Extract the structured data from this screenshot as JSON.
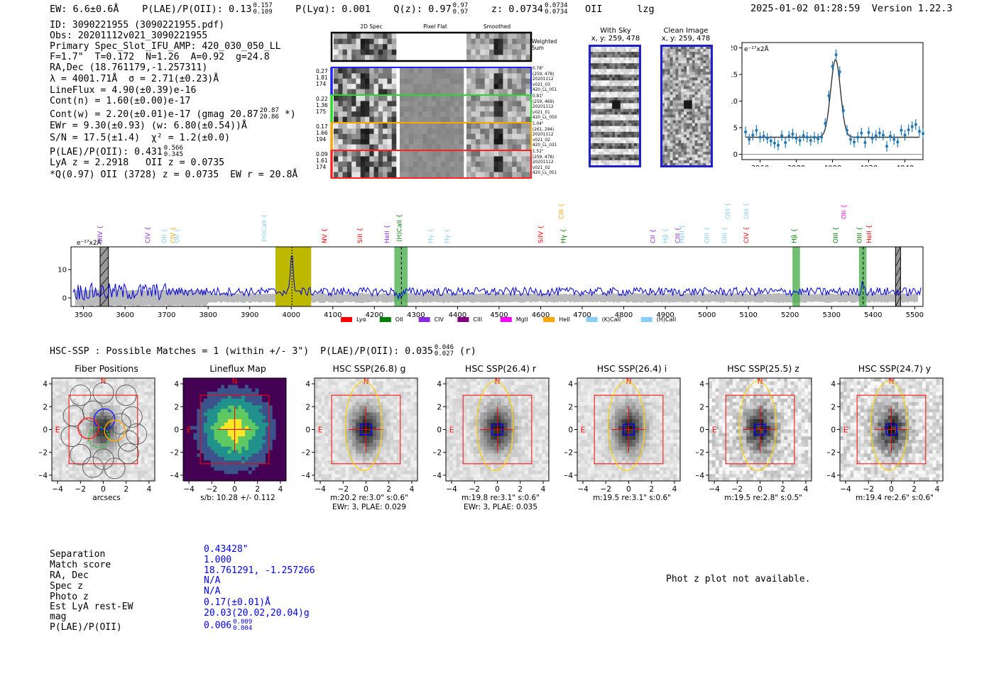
{
  "header": {
    "ew": "EW: 6.6±0.6Å",
    "plae_label": "P(LAE)/P(OII): 0.13",
    "plae_hi": "0.157",
    "plae_lo": "0.109",
    "plya": "P(Lyα): 0.001",
    "qz_label": "Q(z): 0.97",
    "qz_hi": "0.97",
    "qz_lo": "0.97",
    "z_label": "z: 0.0734",
    "z_hi": "0.0734",
    "z_lo": "0.0734",
    "z_line": "OII",
    "flag": "lzg",
    "timestamp": "2025-01-02 01:28:59",
    "version": "Version 1.22.3"
  },
  "info": {
    "id": "ID: 3090221955 (3090221955.pdf)",
    "obs": "Obs: 20201112v021_3090221955",
    "primary": "Primary Spec_Slot_IFU_AMP: 420_030_050_LL",
    "params": "F=1.7\"  T=0.172  N=1.26  A=0.92  g=24.8",
    "radec": "RA,Dec (18.761179,-1.257311)",
    "lambda": "λ = 4001.71Å  σ = 2.71(±0.23)Å",
    "lineflux": "LineFlux = 4.90(±0.39)e-16",
    "contn": "Cont(n) = 1.60(±0.00)e-17",
    "contw": "Cont(w) = 2.20(±0.01)e-17 (gmag 20.87",
    "contw_hi": "20.87",
    "contw_lo": "20.86",
    "contw_end": "*)",
    "ewr": "EWr = 9.30(±0.93) (w: 6.80(±0.54))Å",
    "sn": "S/N = 17.5(±1.4)  χ² = 1.2(±0.0)",
    "plae": "P(LAE)/P(OII): 0.431",
    "plae_hi": "0.566",
    "plae_lo": "0.345",
    "lya": "LyA z = 2.2918   OII z = 0.0735",
    "q": "*Q(0.97) OII (3728) z = 0.0735  EW r = 20.8Å"
  },
  "spec2d": {
    "headers": [
      "2D Spec",
      "Pixel Flat",
      "Smoothed"
    ],
    "weighted": "Weighted Sum",
    "rows": [
      {
        "left": [
          "0.27",
          "1.81",
          "174"
        ],
        "right": [
          "0.78\"",
          "(259, 478)",
          "20201112",
          "v021_03",
          "420_LL_051"
        ],
        "color": "#1f1fff"
      },
      {
        "left": [
          "0.22",
          "1.36",
          "175"
        ],
        "right": [
          "0.81\"",
          "(259, 469)",
          "20201112",
          "v021_01",
          "420_LL_050"
        ],
        "color": "#22dd22"
      },
      {
        "left": [
          "0.17",
          "1.66",
          "194"
        ],
        "right": [
          "1.04\"",
          "(261, 294)",
          "20201112",
          "v021_02",
          "420_LL_031"
        ],
        "color": "#ffa500"
      },
      {
        "left": [
          "0.09",
          "1.61",
          "174"
        ],
        "right": [
          "1.51\"",
          "(259, 478)",
          "20201112",
          "v021_02",
          "420_LL_051"
        ],
        "color": "#ff2222"
      }
    ]
  },
  "sky": {
    "with_sky_title": "With Sky",
    "with_sky_xy": "x, y: 259, 478",
    "clean_title": "Clean Image",
    "clean_xy": "x, y: 259, 478"
  },
  "zoom_chart": {
    "type": "scatter",
    "unit_label": "e⁻¹⁷x2Å",
    "xlim": [
      3950,
      4050
    ],
    "ylim": [
      -1,
      21
    ],
    "xticks": [
      3960,
      3980,
      4000,
      4020,
      4040
    ],
    "yticks": [
      0,
      5,
      10,
      15,
      20
    ],
    "x": [
      3952,
      3954,
      3956,
      3958,
      3960,
      3962,
      3964,
      3966,
      3968,
      3970,
      3972,
      3974,
      3976,
      3978,
      3980,
      3982,
      3984,
      3986,
      3988,
      3990,
      3992,
      3994,
      3996,
      3998,
      4000,
      4002,
      4004,
      4006,
      4008,
      4010,
      4012,
      4014,
      4016,
      4018,
      4020,
      4022,
      4024,
      4026,
      4028,
      4030,
      4032,
      4034,
      4036,
      4038,
      4040,
      4042,
      4044,
      4046,
      4048,
      4050
    ],
    "y": [
      4.2,
      2.8,
      3.6,
      4.5,
      3.2,
      3.4,
      3.0,
      2.5,
      2.1,
      1.7,
      3.5,
      2.2,
      3.4,
      3.8,
      3.0,
      2.6,
      3.5,
      3.2,
      2.6,
      3.2,
      2.9,
      3.2,
      5.8,
      11.0,
      16.5,
      18.7,
      15.5,
      8.2,
      4.5,
      2.8,
      2.3,
      3.2,
      4.0,
      2.2,
      4.1,
      3.0,
      3.5,
      4.0,
      3.6,
      1.5,
      3.4,
      2.8,
      2.3,
      4.5,
      3.6,
      4.6,
      5.2,
      5.6,
      4.3,
      3.9
    ],
    "errors": 1.0,
    "fit_center": 4001.7,
    "fit_sigma": 2.71,
    "fit_amp": 14.6,
    "fit_cont": 3.2
  },
  "spectrum": {
    "type": "line",
    "unit_label": "e⁻¹⁷x2Å",
    "xlim": [
      3470,
      5520
    ],
    "ylim": [
      -3,
      18
    ],
    "xticks": [
      3500,
      3600,
      3700,
      3800,
      3900,
      4000,
      4100,
      4200,
      4300,
      4400,
      4500,
      4600,
      4700,
      4800,
      4900,
      5000,
      5100,
      5200,
      5300,
      5400,
      5500
    ],
    "yticks": [
      0,
      10
    ],
    "peak_wave": 4001.7,
    "highlight_band": [
      3962,
      4048
    ],
    "green_bands": [
      [
        4248,
        4280
      ],
      [
        5206,
        5224
      ],
      [
        5366,
        5384
      ]
    ],
    "gray_bands": [
      [
        3540,
        3560
      ],
      [
        5454,
        5466
      ]
    ],
    "line_labels": [
      {
        "name": "SiIV",
        "wave": 3545,
        "color": "#8a2be2",
        "row": 0
      },
      {
        "name": "CIV",
        "wave": 3660,
        "color": "#8a2be2",
        "row": 0
      },
      {
        "name": "OII",
        "wave": 3700,
        "color": "#87cefa",
        "row": 1
      },
      {
        "name": "CIV",
        "wave": 3720,
        "color": "#ffa500",
        "row": 1
      },
      {
        "name": "OII",
        "wave": 3730,
        "color": "#87cefa",
        "row": 1
      },
      {
        "name": "(H)CaII",
        "wave": 3940,
        "color": "#87cefa",
        "row": 2
      },
      {
        "name": "NV",
        "wave": 4085,
        "color": "#ff0000",
        "row": 0
      },
      {
        "name": "SiII",
        "wave": 4170,
        "color": "#ff0000",
        "row": 0
      },
      {
        "name": "HeII",
        "wave": 4235,
        "color": "#8a2be2",
        "row": 0
      },
      {
        "name": "(H)CaII",
        "wave": 4265,
        "color": "#008000",
        "row": 2
      },
      {
        "name": "Hγ",
        "wave": 4340,
        "color": "#87cefa",
        "row": 0
      },
      {
        "name": "Hγ",
        "wave": 4380,
        "color": "#87cefa",
        "row": 0
      },
      {
        "name": "SiIV",
        "wave": 4605,
        "color": "#ff0000",
        "row": 0
      },
      {
        "name": "CIII",
        "wave": 4655,
        "color": "#ffa500",
        "row": 3
      },
      {
        "name": "Hγ",
        "wave": 4660,
        "color": "#008000",
        "row": 0
      },
      {
        "name": "CII",
        "wave": 4875,
        "color": "#8a2be2",
        "row": 0
      },
      {
        "name": "Hβ",
        "wave": 4905,
        "color": "#87cefa",
        "row": 0
      },
      {
        "name": "CIII",
        "wave": 4935,
        "color": "#8a2be2",
        "row": 0
      },
      {
        "name": "HeII",
        "wave": 4945,
        "color": "#87cefa",
        "row": 0
      },
      {
        "name": "OIII",
        "wave": 5005,
        "color": "#87cefa",
        "row": 0
      },
      {
        "name": "OIII",
        "wave": 5048,
        "color": "#87cefa",
        "row": 0
      },
      {
        "name": "OIII",
        "wave": 5055,
        "color": "#87cefa",
        "row": 3
      },
      {
        "name": "CIV",
        "wave": 5100,
        "color": "#ff0000",
        "row": 0
      },
      {
        "name": "OIII",
        "wave": 5100,
        "color": "#87cefa",
        "row": 3
      },
      {
        "name": "Hβ",
        "wave": 5215,
        "color": "#008000",
        "row": 0
      },
      {
        "name": "OIII",
        "wave": 5315,
        "color": "#008000",
        "row": 0
      },
      {
        "name": "OII",
        "wave": 5335,
        "color": "#ff00ff",
        "row": 3
      },
      {
        "name": "OIII",
        "wave": 5372,
        "color": "#008000",
        "row": 0
      },
      {
        "name": "HeII",
        "wave": 5395,
        "color": "#ff0000",
        "row": 0
      }
    ],
    "legend": [
      {
        "name": "Lyα",
        "color": "#ff0000"
      },
      {
        "name": "OII",
        "color": "#008000"
      },
      {
        "name": "CIV",
        "color": "#8a2be2"
      },
      {
        "name": "CIII",
        "color": "#800080"
      },
      {
        "name": "MgII",
        "color": "#ff00ff"
      },
      {
        "name": "HeII",
        "color": "#ffa500"
      },
      {
        "name": "(K)CaII",
        "color": "#87cefa"
      },
      {
        "name": "(H)CaII",
        "color": "#87cefa"
      }
    ]
  },
  "hsc": {
    "heading": "HSC-SSP : Possible Matches = 1 (within +/- 3\")  P(LAE)/P(OII): 0.035",
    "heading_hi": "0.046",
    "heading_lo": "0.027",
    "heading_end": "(r)",
    "cutouts": [
      {
        "title": "Fiber Positions",
        "kind": "fiber",
        "foot1": "arcsecs",
        "foot2": ""
      },
      {
        "title": "Lineflux Map",
        "kind": "lineflux",
        "foot1": "s/b: 10.28 +/- 0.112",
        "foot2": ""
      },
      {
        "title": "HSC SSP(26.8) g",
        "kind": "image",
        "foot1": "m:20.2  re:3.0\"  s:0.6\"",
        "foot2": "EWr: 3, PLAE: 0.029"
      },
      {
        "title": "HSC SSP(26.4) r",
        "kind": "image",
        "foot1": "m:19.8  re:3.1\"  s:0.6\"",
        "foot2": "EWr: 3, PLAE: 0.035"
      },
      {
        "title": "HSC SSP(26.4) i",
        "kind": "image",
        "foot1": "m:19.5  re:3.1\"  s:0.6\"",
        "foot2": ""
      },
      {
        "title": "HSC SSP(25.5) z",
        "kind": "image",
        "foot1": "m:19.5  re:2.8\"  s:0.5\"",
        "foot2": ""
      },
      {
        "title": "HSC SSP(24.7) y",
        "kind": "image",
        "foot1": "m:19.4  re:2.6\"  s:0.6\"",
        "foot2": ""
      }
    ],
    "axis_ticks": [
      "-4",
      "-2",
      "0",
      "2",
      "4"
    ],
    "compass_n": "N",
    "compass_e": "E"
  },
  "table": {
    "rows": [
      {
        "label": "Separation",
        "value": "0.43428\""
      },
      {
        "label": "Match score",
        "value": "1.000"
      },
      {
        "label": "RA, Dec",
        "value": "18.761291, -1.257266"
      },
      {
        "label": "Spec z",
        "value": "N/A"
      },
      {
        "label": "Photo z",
        "value": "N/A"
      },
      {
        "label": "Est LyA rest-EW",
        "value": "0.17(±0.01)Å"
      },
      {
        "label": "mag",
        "value": "20.03(20.02,20.04)g"
      },
      {
        "label": "P(LAE)/P(OII)",
        "value": "0.006"
      }
    ],
    "plae_hi": "0.009",
    "plae_lo": "0.004",
    "photz_note": "Phot z plot not available."
  }
}
